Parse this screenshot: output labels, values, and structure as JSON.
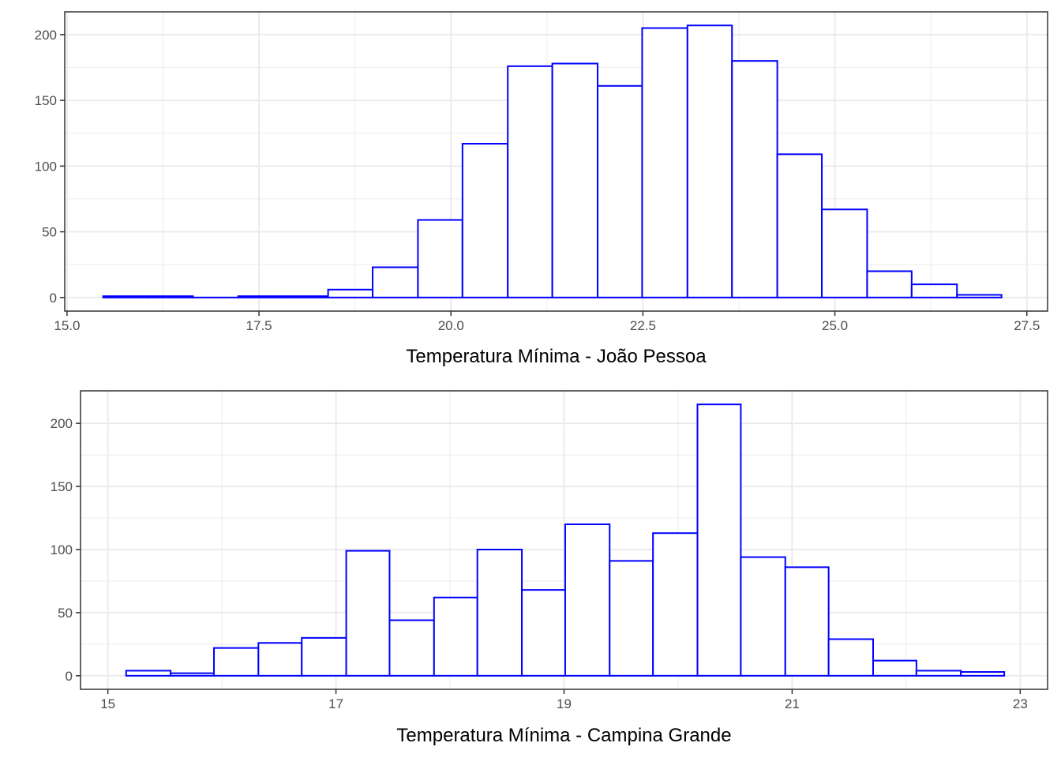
{
  "chart_data": [
    {
      "type": "bar",
      "xlabel": "Temperatura Mínima - João Pessoa",
      "ylabel": "",
      "xlim": [
        14.97,
        27.77
      ],
      "ylim": [
        -10.35,
        217.35
      ],
      "xticks": [
        15.0,
        17.5,
        20.0,
        22.5,
        25.0,
        27.5
      ],
      "xtick_labels": [
        "15.0",
        "17.5",
        "20.0",
        "22.5",
        "25.0",
        "27.5"
      ],
      "yticks": [
        0,
        50,
        100,
        150,
        200
      ],
      "ytick_labels": [
        "0",
        "50",
        "100",
        "150",
        "200"
      ],
      "grid": true,
      "bar_color": "#0000ff",
      "bins": [
        {
          "x0": 15.47,
          "x1": 16.06,
          "count": 1
        },
        {
          "x0": 16.06,
          "x1": 16.64,
          "count": 1
        },
        {
          "x0": 16.64,
          "x1": 17.23,
          "count": 0
        },
        {
          "x0": 17.23,
          "x1": 17.81,
          "count": 1
        },
        {
          "x0": 17.81,
          "x1": 18.4,
          "count": 1
        },
        {
          "x0": 18.4,
          "x1": 18.98,
          "count": 6
        },
        {
          "x0": 18.98,
          "x1": 19.57,
          "count": 23
        },
        {
          "x0": 19.57,
          "x1": 20.15,
          "count": 59
        },
        {
          "x0": 20.15,
          "x1": 20.74,
          "count": 117
        },
        {
          "x0": 20.74,
          "x1": 21.32,
          "count": 176
        },
        {
          "x0": 21.32,
          "x1": 21.91,
          "count": 178
        },
        {
          "x0": 21.91,
          "x1": 22.49,
          "count": 161
        },
        {
          "x0": 22.49,
          "x1": 23.08,
          "count": 205
        },
        {
          "x0": 23.08,
          "x1": 23.66,
          "count": 207
        },
        {
          "x0": 23.66,
          "x1": 24.25,
          "count": 180
        },
        {
          "x0": 24.25,
          "x1": 24.83,
          "count": 109
        },
        {
          "x0": 24.83,
          "x1": 25.42,
          "count": 67
        },
        {
          "x0": 25.42,
          "x1": 26.0,
          "count": 20
        },
        {
          "x0": 26.0,
          "x1": 26.59,
          "count": 10
        },
        {
          "x0": 26.59,
          "x1": 27.17,
          "count": 2
        }
      ]
    },
    {
      "type": "bar",
      "xlabel": "Temperatura Mínima - Campina Grande",
      "ylabel": "",
      "xlim": [
        14.76,
        23.24
      ],
      "ylim": [
        -10.75,
        225.75
      ],
      "xticks": [
        15,
        17,
        19,
        21,
        23
      ],
      "xtick_labels": [
        "15",
        "17",
        "19",
        "21",
        "23"
      ],
      "yticks": [
        0,
        50,
        100,
        150,
        200
      ],
      "ytick_labels": [
        "0",
        "50",
        "100",
        "150",
        "200"
      ],
      "grid": true,
      "bar_color": "#0000ff",
      "bins": [
        {
          "x0": 15.16,
          "x1": 15.55,
          "count": 4
        },
        {
          "x0": 15.55,
          "x1": 15.93,
          "count": 2
        },
        {
          "x0": 15.93,
          "x1": 16.32,
          "count": 22
        },
        {
          "x0": 16.32,
          "x1": 16.7,
          "count": 26
        },
        {
          "x0": 16.7,
          "x1": 17.09,
          "count": 30
        },
        {
          "x0": 17.09,
          "x1": 17.47,
          "count": 99
        },
        {
          "x0": 17.47,
          "x1": 17.86,
          "count": 44
        },
        {
          "x0": 17.86,
          "x1": 18.24,
          "count": 62
        },
        {
          "x0": 18.24,
          "x1": 18.63,
          "count": 100
        },
        {
          "x0": 18.63,
          "x1": 19.01,
          "count": 68
        },
        {
          "x0": 19.01,
          "x1": 19.4,
          "count": 120
        },
        {
          "x0": 19.4,
          "x1": 19.78,
          "count": 91
        },
        {
          "x0": 19.78,
          "x1": 20.17,
          "count": 113
        },
        {
          "x0": 20.17,
          "x1": 20.55,
          "count": 215
        },
        {
          "x0": 20.55,
          "x1": 20.94,
          "count": 94
        },
        {
          "x0": 20.94,
          "x1": 21.32,
          "count": 86
        },
        {
          "x0": 21.32,
          "x1": 21.71,
          "count": 29
        },
        {
          "x0": 21.71,
          "x1": 22.09,
          "count": 12
        },
        {
          "x0": 22.09,
          "x1": 22.48,
          "count": 4
        },
        {
          "x0": 22.48,
          "x1": 22.86,
          "count": 3
        }
      ]
    }
  ]
}
